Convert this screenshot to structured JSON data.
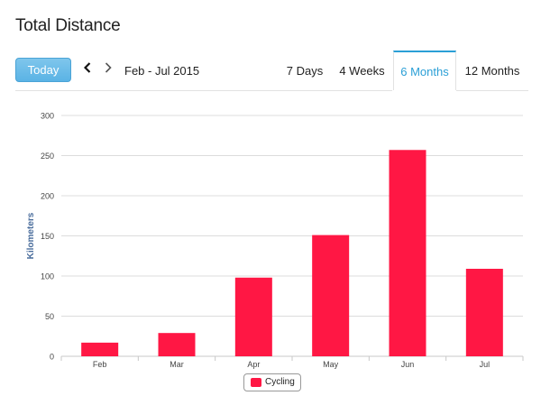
{
  "page": {
    "title": "Total Distance"
  },
  "toolbar": {
    "today_label": "Today",
    "prev_icon": "chevron-left-icon",
    "next_icon": "chevron-right-icon",
    "date_range": "Feb - Jul 2015",
    "tabs": [
      {
        "label": "7 Days",
        "active": false
      },
      {
        "label": "4 Weeks",
        "active": false
      },
      {
        "label": "6 Months",
        "active": true
      },
      {
        "label": "12 Months",
        "active": false
      }
    ],
    "accent_color": "#2a9fd6",
    "button_color": "#5ab3e5"
  },
  "chart_data": {
    "type": "bar",
    "title": "",
    "xlabel": "",
    "ylabel": "Kilometers",
    "categories": [
      "Feb",
      "Mar",
      "Apr",
      "May",
      "Jun",
      "Jul"
    ],
    "series": [
      {
        "name": "Cycling",
        "values": [
          17,
          29,
          98,
          151,
          257,
          109
        ],
        "color": "#ff1744"
      }
    ],
    "ylim": [
      0,
      300
    ],
    "yticks": [
      0,
      50,
      100,
      150,
      200,
      250,
      300
    ],
    "grid": true,
    "legend_position": "bottom-center"
  }
}
